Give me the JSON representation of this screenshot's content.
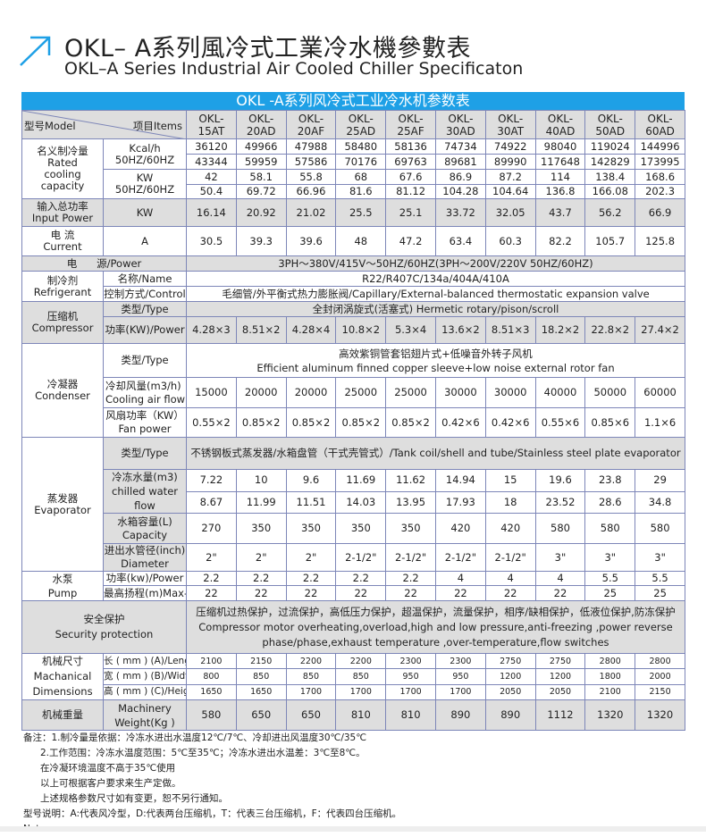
{
  "header": {
    "icon": "diagonal-arrow-icon",
    "accent": "#1ea0e6",
    "title_cn": "OKL– A系列風冷式工業冷水機參數表",
    "title_en": "OKL–A Series Industrial Air Cooled Chiller Specificaton"
  },
  "table": {
    "banner": "OKL -A系列风冷式工业冷水机参数表",
    "model_label": "型号Model",
    "items_label": "项目Items",
    "models": [
      "OKL-\n15AT",
      "OKL-\n20AD",
      "OKL-\n20AF",
      "OKL-\n25AD",
      "OKL-\n25AF",
      "OKL-\n30AD",
      "OKL-\n30AT",
      "OKL-\n40AD",
      "OKL-\n50AD",
      "OKL-\n60AD"
    ],
    "cooling": {
      "label": "名义制冷量\nRated\ncooling\ncapacity",
      "kcal_unit": "Kcal/h\n50HZ/60HZ",
      "kw_unit": "KW\n50HZ/60HZ",
      "kcal_50": [
        "36120",
        "49966",
        "47988",
        "58480",
        "58136",
        "74734",
        "74922",
        "98040",
        "119024",
        "144996"
      ],
      "kcal_60": [
        "43344",
        "59959",
        "57586",
        "70176",
        "69763",
        "89681",
        "89990",
        "117648",
        "142829",
        "173995"
      ],
      "kw_50": [
        "42",
        "58.1",
        "55.8",
        "68",
        "67.6",
        "86.9",
        "87.2",
        "114",
        "138.4",
        "168.6"
      ],
      "kw_60": [
        "50.4",
        "69.72",
        "66.96",
        "81.6",
        "81.12",
        "104.28",
        "104.64",
        "136.8",
        "166.08",
        "202.3"
      ]
    },
    "input_power": {
      "label": "输入总功率\nInput Power",
      "unit": "KW",
      "values": [
        "16.14",
        "20.92",
        "21.02",
        "25.5",
        "25.1",
        "33.72",
        "32.05",
        "43.7",
        "56.2",
        "66.9"
      ]
    },
    "current": {
      "label": "电  流\nCurrent",
      "unit": "A",
      "values": [
        "30.5",
        "39.3",
        "39.6",
        "48",
        "47.2",
        "63.4",
        "60.3",
        "82.2",
        "105.7",
        "125.8"
      ]
    },
    "power": {
      "label": "电      源/Power",
      "value": "3PH～380V/415V～50HZ/60HZ(3PH～200V/220V   50HZ/60HZ)"
    },
    "refrigerant": {
      "label": "制冷剂\nRefrigerant",
      "name_label": "名称/Name",
      "name_value": "R22/R407C/134a/404A/410A",
      "control_label": "控制方式/Control",
      "control_value": "毛细管/外平衡式热力膨胀阀/Capillary/External-balanced thermostatic expansion valve"
    },
    "compressor": {
      "label": "压缩机\nCompressor",
      "type_label": "类型/Type",
      "type_value": "全封闭涡旋式(活塞式)               Hermetic rotary/pison/scroll",
      "power_label": "功率(KW)/Power",
      "power_values": [
        "4.28×3",
        "8.51×2",
        "4.28×4",
        "10.8×2",
        "5.3×4",
        "13.6×2",
        "8.51×3",
        "18.2×2",
        "22.8×2",
        "27.4×2"
      ]
    },
    "condenser": {
      "label": "冷凝器\nCondenser",
      "type_label": "类型/Type",
      "type_value": "高效紫铜管套铝翅片式+低噪音外转子风机\nEfficient aluminum finned copper sleeve+low noise external rotor fan",
      "airflow_label": "冷却风量(m3/h)\nCooling air flow",
      "airflow_values": [
        "15000",
        "20000",
        "20000",
        "25000",
        "25000",
        "30000",
        "30000",
        "40000",
        "50000",
        "60000"
      ],
      "fan_label": "风扇功率（KW）\nFan power",
      "fan_values": [
        "0.55×2",
        "0.85×2",
        "0.85×2",
        "0.85×2",
        "0.85×2",
        "0.42×6",
        "0.42×6",
        "0.55×6",
        "0.85×6",
        "1.1×6"
      ]
    },
    "evaporator": {
      "label": "蒸发器\nEvaporator",
      "type_label": "类型/Type",
      "type_value": "不锈钢板式蒸发器/水箱盘管（干式壳管式）/Tank coil/shell and tube/Stainless steel plate evaporator",
      "flow_label": "冷冻水量(m3)\nchilled water flow",
      "flow_50": [
        "7.22",
        "10",
        "9.6",
        "11.69",
        "11.62",
        "14.94",
        "15",
        "19.6",
        "23.8",
        "29"
      ],
      "flow_60": [
        "8.67",
        "11.99",
        "11.51",
        "14.03",
        "13.95",
        "17.93",
        "18",
        "23.52",
        "28.6",
        "34.8"
      ],
      "tank_label": "水箱容量(L)\nCapacity",
      "tank_values": [
        "270",
        "350",
        "350",
        "350",
        "350",
        "420",
        "420",
        "580",
        "580",
        "580"
      ],
      "pipe_label": "进出水管径(inch)\nDiameter",
      "pipe_values": [
        "2\"",
        "2\"",
        "2\"",
        "2-1/2\"",
        "2-1/2\"",
        "2-1/2\"",
        "2-1/2\"",
        "3\"",
        "3\"",
        "3\""
      ]
    },
    "pump": {
      "label": "水泵\nPump",
      "power_label": "功率(kw)/Power",
      "power_values": [
        "2.2",
        "2.2",
        "2.2",
        "2.2",
        "2.2",
        "4",
        "4",
        "4",
        "5.5",
        "5.5"
      ],
      "lift_label": "最高扬程(m)Max-lift",
      "lift_values": [
        "22",
        "22",
        "22",
        "22",
        "22",
        "22",
        "22",
        "22",
        "25",
        "25"
      ]
    },
    "security": {
      "label": "安全保护\nSecurity protection",
      "value": "压缩机过热保护，过流保护，高低压力保护，超温保护，流量保护，相序/缺相保护，低液位保护,防冻保护\nCompressor motor overheating,overload,high and low pressure,anti-freezing ,power reverse\nphase/phase,exhaust temperature ,over-temperature,flow switches"
    },
    "dimensions": {
      "label": "机械尺寸\nMachanical\nDimensions",
      "length_label": "长 ( mm ) (A)/Length",
      "length_values": [
        "2100",
        "2150",
        "2200",
        "2200",
        "2300",
        "2300",
        "2750",
        "2750",
        "2800",
        "2800"
      ],
      "width_label": "宽 ( mm ) (B)/Width",
      "width_values": [
        "800",
        "850",
        "850",
        "850",
        "950",
        "950",
        "1200",
        "1200",
        "1800",
        "2000"
      ],
      "height_label": "高 ( mm ) (C)/Height",
      "height_values": [
        "1650",
        "1650",
        "1700",
        "1700",
        "1700",
        "1700",
        "2050",
        "2050",
        "2100",
        "2150"
      ]
    },
    "weight": {
      "label": "机械重量",
      "unit": "Machinery\nWeight(Kg )",
      "values": [
        "580",
        "650",
        "650",
        "810",
        "810",
        "890",
        "890",
        "1112",
        "1320",
        "1320"
      ]
    }
  },
  "notes": [
    "备注：1.制冷量是依据：冷冻水进出水温度12℃/7℃、冷却进出风温度30℃/35℃",
    "2.工作范围：冷冻水温度范围：5℃至35℃；冷冻水进出水温差：3℃至8℃。",
    "在冷凝环境温度不高于35℃使用",
    "以上可根据客户要求来生产定做。",
    "上述规格参数尺寸如有变更，恕不另行通知。",
    "型号说明：A:代表风冷型，D:代表两台压缩机，T：代表三台压缩机，F：代表四台压缩机。",
    "Notes:"
  ]
}
